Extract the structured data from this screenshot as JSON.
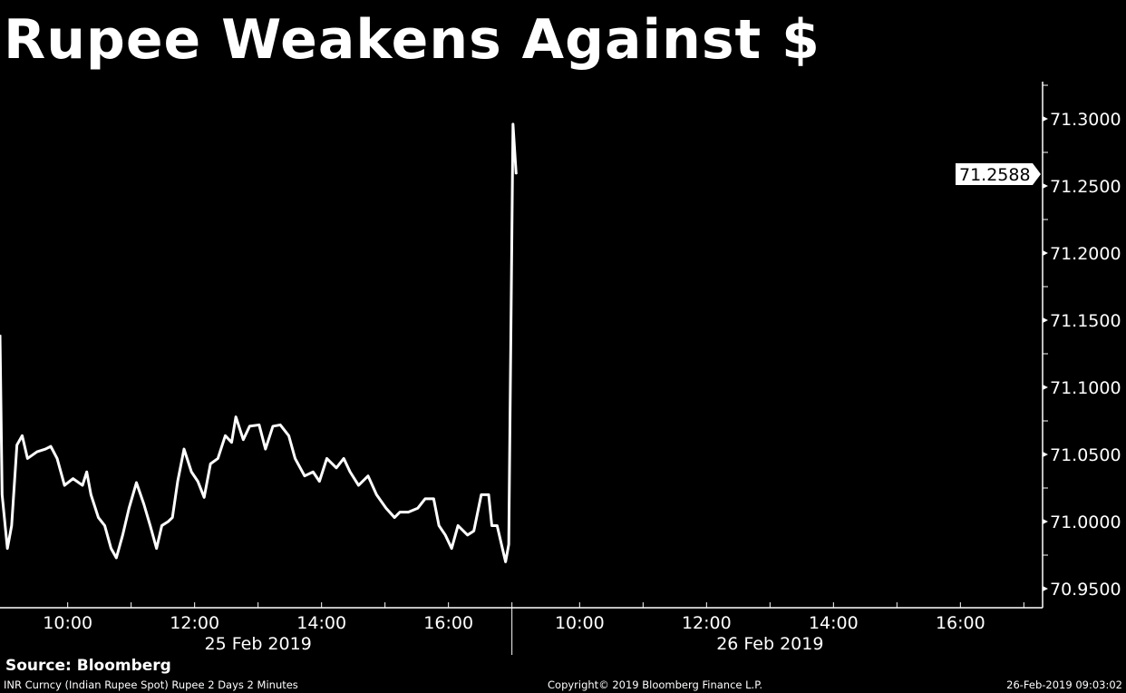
{
  "title": "Rupee Weakens Against $",
  "source": "Source: Bloomberg",
  "footer": {
    "description": "INR Curncy (Indian Rupee Spot) Rupee 2 Days 2 Minutes",
    "copyright": "Copyright© 2019 Bloomberg Finance L.P.",
    "timestamp": "26-Feb-2019 09:03:02"
  },
  "colors": {
    "background": "#000000",
    "line": "#ffffff",
    "axis": "#ffffff"
  },
  "chart_data": {
    "type": "line",
    "title": "Rupee Weakens Against $",
    "ylim": [
      70.935,
      71.33
    ],
    "y_ticks": [
      "71.3000",
      "71.2500",
      "71.2000",
      "71.1500",
      "71.1000",
      "71.0500",
      "71.0000",
      "70.9500"
    ],
    "y_tick_values": [
      71.3,
      71.25,
      71.2,
      71.15,
      71.1,
      71.05,
      71.0,
      70.95
    ],
    "x_tick_labels": [
      "10:00",
      "12:00",
      "14:00",
      "16:00"
    ],
    "days": [
      "25 Feb 2019",
      "26 Feb 2019"
    ],
    "session": [
      "08:56",
      "17:00"
    ],
    "grid": false,
    "last_value_label": "71.2588",
    "series": [
      {
        "points": [
          [
            "25 Feb 2019",
            "08:56",
            71.139
          ],
          [
            "25 Feb 2019",
            "08:58",
            71.02
          ],
          [
            "25 Feb 2019",
            "09:03",
            70.98
          ],
          [
            "25 Feb 2019",
            "09:07",
            70.997
          ],
          [
            "25 Feb 2019",
            "09:12",
            71.057
          ],
          [
            "25 Feb 2019",
            "09:17",
            71.064
          ],
          [
            "25 Feb 2019",
            "09:22",
            71.047
          ],
          [
            "25 Feb 2019",
            "09:31",
            71.052
          ],
          [
            "25 Feb 2019",
            "09:39",
            71.054
          ],
          [
            "25 Feb 2019",
            "09:44",
            71.056
          ],
          [
            "25 Feb 2019",
            "09:50",
            71.047
          ],
          [
            "25 Feb 2019",
            "09:57",
            71.027
          ],
          [
            "25 Feb 2019",
            "10:05",
            71.032
          ],
          [
            "25 Feb 2019",
            "10:14",
            71.027
          ],
          [
            "25 Feb 2019",
            "10:18",
            71.037
          ],
          [
            "25 Feb 2019",
            "10:22",
            71.02
          ],
          [
            "25 Feb 2019",
            "10:29",
            71.003
          ],
          [
            "25 Feb 2019",
            "10:35",
            70.997
          ],
          [
            "25 Feb 2019",
            "10:41",
            70.98
          ],
          [
            "25 Feb 2019",
            "10:46",
            70.973
          ],
          [
            "25 Feb 2019",
            "10:52",
            70.99
          ],
          [
            "25 Feb 2019",
            "10:58",
            71.01
          ],
          [
            "25 Feb 2019",
            "11:05",
            71.029
          ],
          [
            "25 Feb 2019",
            "11:12",
            71.013
          ],
          [
            "25 Feb 2019",
            "11:18",
            70.997
          ],
          [
            "25 Feb 2019",
            "11:24",
            70.98
          ],
          [
            "25 Feb 2019",
            "11:29",
            70.997
          ],
          [
            "25 Feb 2019",
            "11:35",
            71.0
          ],
          [
            "25 Feb 2019",
            "11:39",
            71.003
          ],
          [
            "25 Feb 2019",
            "11:44",
            71.03
          ],
          [
            "25 Feb 2019",
            "11:50",
            71.054
          ],
          [
            "25 Feb 2019",
            "11:57",
            71.037
          ],
          [
            "25 Feb 2019",
            "12:03",
            71.03
          ],
          [
            "25 Feb 2019",
            "12:09",
            71.018
          ],
          [
            "25 Feb 2019",
            "12:15",
            71.043
          ],
          [
            "25 Feb 2019",
            "12:22",
            71.047
          ],
          [
            "25 Feb 2019",
            "12:29",
            71.064
          ],
          [
            "25 Feb 2019",
            "12:35",
            71.059
          ],
          [
            "25 Feb 2019",
            "12:39",
            71.078
          ],
          [
            "25 Feb 2019",
            "12:46",
            71.061
          ],
          [
            "25 Feb 2019",
            "12:52",
            71.071
          ],
          [
            "25 Feb 2019",
            "13:01",
            71.072
          ],
          [
            "25 Feb 2019",
            "13:07",
            71.054
          ],
          [
            "25 Feb 2019",
            "13:14",
            71.071
          ],
          [
            "25 Feb 2019",
            "13:21",
            71.072
          ],
          [
            "25 Feb 2019",
            "13:29",
            71.064
          ],
          [
            "25 Feb 2019",
            "13:35",
            71.047
          ],
          [
            "25 Feb 2019",
            "13:44",
            71.034
          ],
          [
            "25 Feb 2019",
            "13:52",
            71.037
          ],
          [
            "25 Feb 2019",
            "13:58",
            71.03
          ],
          [
            "25 Feb 2019",
            "14:05",
            71.047
          ],
          [
            "25 Feb 2019",
            "14:14",
            71.04
          ],
          [
            "25 Feb 2019",
            "14:21",
            71.047
          ],
          [
            "25 Feb 2019",
            "14:27",
            71.037
          ],
          [
            "25 Feb 2019",
            "14:35",
            71.027
          ],
          [
            "25 Feb 2019",
            "14:44",
            71.034
          ],
          [
            "25 Feb 2019",
            "14:52",
            71.02
          ],
          [
            "25 Feb 2019",
            "15:01",
            71.01
          ],
          [
            "25 Feb 2019",
            "15:09",
            71.003
          ],
          [
            "25 Feb 2019",
            "15:14",
            71.007
          ],
          [
            "25 Feb 2019",
            "15:22",
            71.007
          ],
          [
            "25 Feb 2019",
            "15:31",
            71.01
          ],
          [
            "25 Feb 2019",
            "15:38",
            71.017
          ],
          [
            "25 Feb 2019",
            "15:46",
            71.017
          ],
          [
            "25 Feb 2019",
            "15:51",
            70.997
          ],
          [
            "25 Feb 2019",
            "15:57",
            70.99
          ],
          [
            "25 Feb 2019",
            "16:03",
            70.98
          ],
          [
            "25 Feb 2019",
            "16:09",
            70.997
          ],
          [
            "25 Feb 2019",
            "16:18",
            70.99
          ],
          [
            "25 Feb 2019",
            "16:24",
            70.993
          ],
          [
            "25 Feb 2019",
            "16:31",
            71.02
          ],
          [
            "25 Feb 2019",
            "16:38",
            71.02
          ],
          [
            "25 Feb 2019",
            "16:41",
            70.997
          ],
          [
            "25 Feb 2019",
            "16:46",
            70.997
          ],
          [
            "25 Feb 2019",
            "16:51",
            70.98
          ],
          [
            "25 Feb 2019",
            "16:54",
            70.97
          ],
          [
            "25 Feb 2019",
            "16:57",
            70.983
          ],
          [
            "26 Feb 2019",
            "08:57",
            71.296
          ],
          [
            "26 Feb 2019",
            "09:00",
            71.2588
          ]
        ]
      }
    ]
  }
}
